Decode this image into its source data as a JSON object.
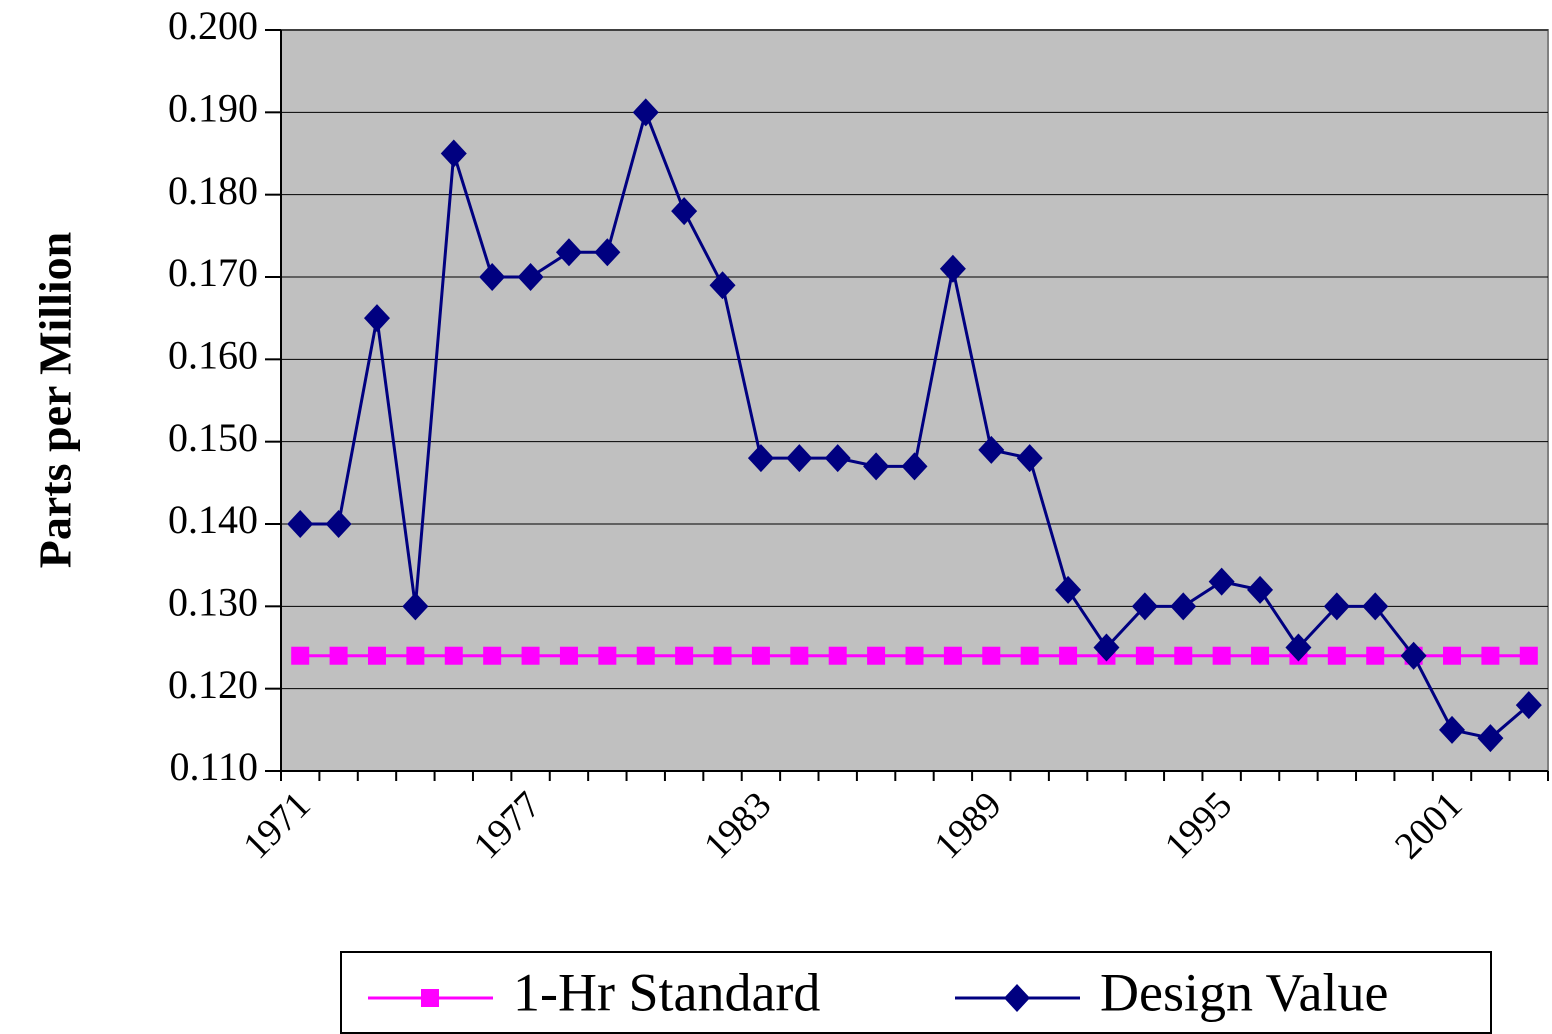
{
  "chart_data": {
    "type": "line",
    "y_label": "Parts per Million",
    "categories": [
      "1971",
      null,
      null,
      null,
      null,
      null,
      "1977",
      null,
      null,
      null,
      null,
      null,
      "1983",
      null,
      null,
      null,
      null,
      null,
      "1989",
      null,
      null,
      null,
      null,
      null,
      "1995",
      null,
      null,
      null,
      null,
      null,
      "2001",
      null,
      null
    ],
    "series": [
      {
        "name": "1-Hr Standard",
        "color": "#ff00ff",
        "marker": "square",
        "values": [
          0.124,
          0.124,
          0.124,
          0.124,
          0.124,
          0.124,
          0.124,
          0.124,
          0.124,
          0.124,
          0.124,
          0.124,
          0.124,
          0.124,
          0.124,
          0.124,
          0.124,
          0.124,
          0.124,
          0.124,
          0.124,
          0.124,
          0.124,
          0.124,
          0.124,
          0.124,
          0.124,
          0.124,
          0.124,
          0.124,
          0.124,
          0.124,
          0.124
        ]
      },
      {
        "name": "Design Value",
        "color": "#000080",
        "marker": "diamond",
        "values": [
          0.14,
          0.14,
          0.165,
          0.13,
          0.185,
          0.17,
          0.17,
          0.173,
          0.173,
          0.19,
          0.178,
          0.169,
          0.148,
          0.148,
          0.148,
          0.147,
          0.147,
          0.171,
          0.149,
          0.148,
          0.132,
          0.125,
          0.13,
          0.13,
          0.133,
          0.132,
          0.125,
          0.13,
          0.13,
          0.124,
          0.115,
          0.114,
          0.118
        ]
      }
    ],
    "ylim": [
      0.11,
      0.2
    ],
    "yticks": [
      {
        "value": 0.11,
        "label": "0.110"
      },
      {
        "value": 0.12,
        "label": "0.120"
      },
      {
        "value": 0.13,
        "label": "0.130"
      },
      {
        "value": 0.14,
        "label": "0.140"
      },
      {
        "value": 0.15,
        "label": "0.150"
      },
      {
        "value": 0.16,
        "label": "0.160"
      },
      {
        "value": 0.17,
        "label": "0.170"
      },
      {
        "value": 0.18,
        "label": "0.180"
      },
      {
        "value": 0.19,
        "label": "0.190"
      },
      {
        "value": 0.2,
        "label": "0.200"
      }
    ],
    "grid": true,
    "plot_background": "#c0c0c0",
    "legend": "bottom"
  }
}
